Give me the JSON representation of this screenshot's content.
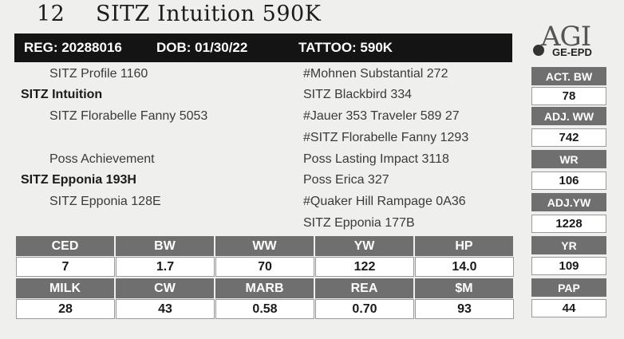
{
  "title": {
    "lot": "12",
    "name": "SITZ Intuition 590K"
  },
  "id_bar": {
    "reg": "REG: 20288016",
    "dob": "DOB: 01/30/22",
    "tattoo": "TATTOO: 590K"
  },
  "logo": {
    "agi": "AGI",
    "sub": "GE-EPD"
  },
  "pedigree": {
    "left": [
      {
        "text": "SITZ Profile 1160",
        "bold": false
      },
      {
        "text": "SITZ Intuition",
        "bold": true
      },
      {
        "text": "SITZ Florabelle Fanny 5053",
        "bold": false
      },
      {
        "text": "Poss Achievement",
        "bold": false
      },
      {
        "text": "SITZ Epponia 193H",
        "bold": true
      },
      {
        "text": "SITZ Epponia 128E",
        "bold": false
      }
    ],
    "right": [
      "#Mohnen Substantial 272",
      "SITZ Blackbird 334",
      "#Jauer 353 Traveler 589 27",
      "#SITZ Florabelle Fanny 1293",
      "Poss Lasting Impact 3118",
      "Poss Erica 327",
      "#Quaker Hill Rampage 0A36",
      "SITZ Epponia 177B"
    ]
  },
  "side_stats": [
    {
      "label": "ACT. BW",
      "value": "78"
    },
    {
      "label": "ADJ. WW",
      "value": "742"
    },
    {
      "label": "WR",
      "value": "106"
    },
    {
      "label": "ADJ.YW",
      "value": "1228"
    },
    {
      "label": "YR",
      "value": "109"
    },
    {
      "label": "PAP",
      "value": "44"
    }
  ],
  "epd_rows": [
    {
      "headers": [
        "CED",
        "BW",
        "WW",
        "YW",
        "HP"
      ],
      "values": [
        "7",
        "1.7",
        "70",
        "122",
        "14.0"
      ]
    },
    {
      "headers": [
        "MILK",
        "CW",
        "MARB",
        "REA",
        "$M"
      ],
      "values": [
        "28",
        "43",
        "0.58",
        "0.70",
        "93"
      ]
    }
  ]
}
